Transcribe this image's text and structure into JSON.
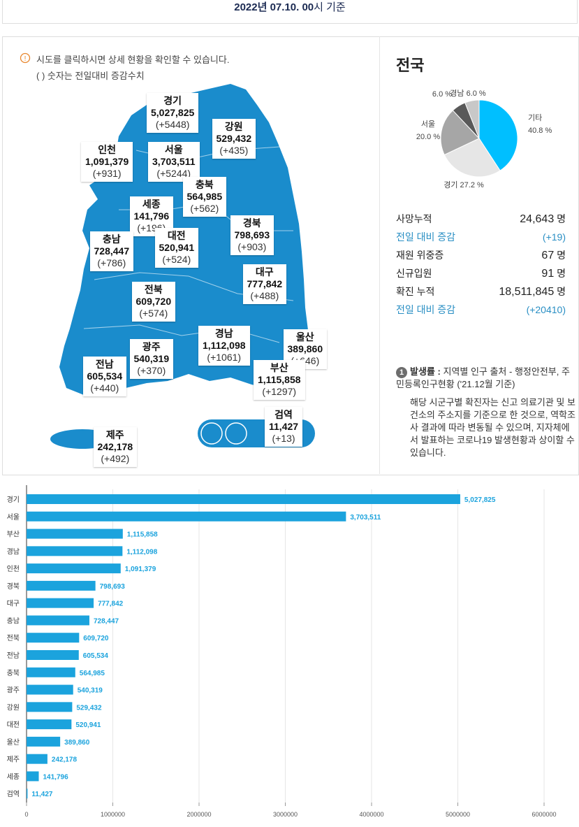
{
  "header": {
    "date": "2022년 07.10. 00",
    "suffix": "시 기준"
  },
  "map": {
    "notice": [
      "시도를 클릭하시면 상세 현황을 확인할 수 있습니다.",
      "( ) 숫자는 전일대비 증감수치"
    ],
    "regions": [
      {
        "name": "경기",
        "total": "5,027,825",
        "change": "(+5448)"
      },
      {
        "name": "강원",
        "total": "529,432",
        "change": "(+435)"
      },
      {
        "name": "인천",
        "total": "1,091,379",
        "change": "(+931)"
      },
      {
        "name": "서울",
        "total": "3,703,511",
        "change": "(+5244)"
      },
      {
        "name": "충북",
        "total": "564,985",
        "change": "(+562)"
      },
      {
        "name": "세종",
        "total": "141,796",
        "change": "(+196)"
      },
      {
        "name": "경북",
        "total": "798,693",
        "change": "(+903)"
      },
      {
        "name": "충남",
        "total": "728,447",
        "change": "(+786)"
      },
      {
        "name": "대전",
        "total": "520,941",
        "change": "(+524)"
      },
      {
        "name": "대구",
        "total": "777,842",
        "change": "(+488)"
      },
      {
        "name": "전북",
        "total": "609,720",
        "change": "(+574)"
      },
      {
        "name": "경남",
        "total": "1,112,098",
        "change": "(+1061)"
      },
      {
        "name": "울산",
        "total": "389,860",
        "change": "(+646)"
      },
      {
        "name": "광주",
        "total": "540,319",
        "change": "(+370)"
      },
      {
        "name": "전남",
        "total": "605,534",
        "change": "(+440)"
      },
      {
        "name": "부산",
        "total": "1,115,858",
        "change": "(+1297)"
      },
      {
        "name": "제주",
        "total": "242,178",
        "change": "(+492)"
      },
      {
        "name": "검역",
        "total": "11,427",
        "change": "(+13)"
      }
    ]
  },
  "summary": {
    "title": "전국",
    "rows": [
      {
        "label": "사망누적",
        "value": "24,643",
        "unit": "명"
      },
      {
        "label": "전일 대비 증감",
        "value": "(+19)"
      },
      {
        "label": "재원 위중증",
        "value": "67",
        "unit": "명"
      },
      {
        "label": "신규입원",
        "value": "91",
        "unit": "명"
      },
      {
        "label": "확진 누적",
        "value": "18,511,845",
        "unit": "명"
      },
      {
        "label": "전일 대비 증감",
        "value": "(+20410)"
      }
    ]
  },
  "note": {
    "badge": "1",
    "title": "발생률 :",
    "source": "지역별 인구 출처 - 행정안전부, 주민등록인구현황 ('21.12월 기준)",
    "body": "해당 시군구별 확진자는 신고 의료기관 및 보건소의 주소지를 기준으로 한 것으로, 역학조사 결과에 따라 변동될 수 있으며, 지자체에서 발표하는 코로나19 발생현황과 상이할 수 있습니다."
  },
  "chart_data": [
    {
      "type": "pie",
      "categories": [
        "기타",
        "경기",
        "서울",
        null,
        "경남"
      ],
      "values": [
        40.8,
        27.2,
        20.0,
        6.0,
        6.0
      ],
      "value_labels": [
        "40.8 %",
        "27.2 %",
        "20.0 %",
        "6.0 %",
        "6.0 %"
      ],
      "colors": [
        "#00bfff",
        "#e6e6e6",
        "#a6a6a6",
        "#595959",
        "#c8c8c8"
      ]
    },
    {
      "type": "bar",
      "orientation": "horizontal",
      "color": "#1ba3dd",
      "grid": true,
      "categories": [
        "경기",
        "서울",
        "부산",
        "경남",
        "인천",
        "경북",
        "대구",
        "충남",
        "전북",
        "전남",
        "충북",
        "광주",
        "강원",
        "대전",
        "울산",
        "제주",
        "세종",
        "검역"
      ],
      "values": [
        5027825,
        3703511,
        1115858,
        1112098,
        1091379,
        798693,
        777842,
        728447,
        609720,
        605534,
        564985,
        540319,
        529432,
        520941,
        389860,
        242178,
        141796,
        11427
      ],
      "value_labels": [
        "5,027,825",
        "3,703,511",
        "1,115,858",
        "1,112,098",
        "1,091,379",
        "798,693",
        "777,842",
        "728,447",
        "609,720",
        "605,534",
        "564,985",
        "540,319",
        "529,432",
        "520,941",
        "389,860",
        "242,178",
        "141,796",
        "11,427"
      ],
      "xlim": [
        0,
        6000000
      ],
      "xticks": [
        0,
        1000000,
        2000000,
        3000000,
        4000000,
        5000000,
        6000000
      ]
    }
  ]
}
